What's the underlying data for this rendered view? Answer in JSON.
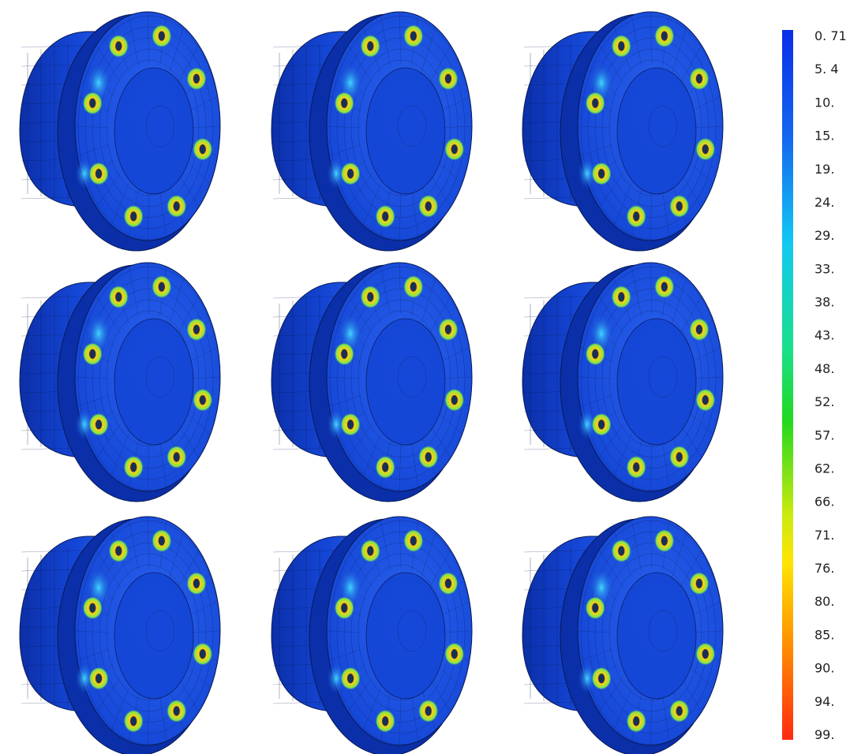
{
  "colors": {
    "part_base": "#1446d6",
    "part_dark": "#0b2fa8",
    "part_light": "#2a62ee",
    "mesh_line": "#0a1a55",
    "hot_spot": "#f5d21a",
    "warm_spot": "#41d6ff",
    "background": "#ffffff"
  },
  "grid": {
    "rows": 3,
    "columns": 3,
    "part_count": 9
  },
  "legend": {
    "gradient_stops": [
      {
        "offset": 0.0,
        "color": "#0a2ee8"
      },
      {
        "offset": 0.15,
        "color": "#1466f0"
      },
      {
        "offset": 0.3,
        "color": "#12c8f2"
      },
      {
        "offset": 0.45,
        "color": "#18e08a"
      },
      {
        "offset": 0.55,
        "color": "#22d820"
      },
      {
        "offset": 0.68,
        "color": "#c8ea10"
      },
      {
        "offset": 0.75,
        "color": "#ffe400"
      },
      {
        "offset": 0.85,
        "color": "#ff9a00"
      },
      {
        "offset": 1.0,
        "color": "#ff2a10"
      }
    ],
    "ticks": [
      "0. 71",
      "5. 4",
      "10.",
      "15.",
      "19.",
      "24.",
      "29.",
      "33.",
      "38.",
      "43.",
      "48.",
      "52.",
      "57.",
      "62.",
      "66.",
      "71.",
      "76.",
      "80.",
      "85.",
      "90.",
      "94.",
      "99."
    ]
  }
}
